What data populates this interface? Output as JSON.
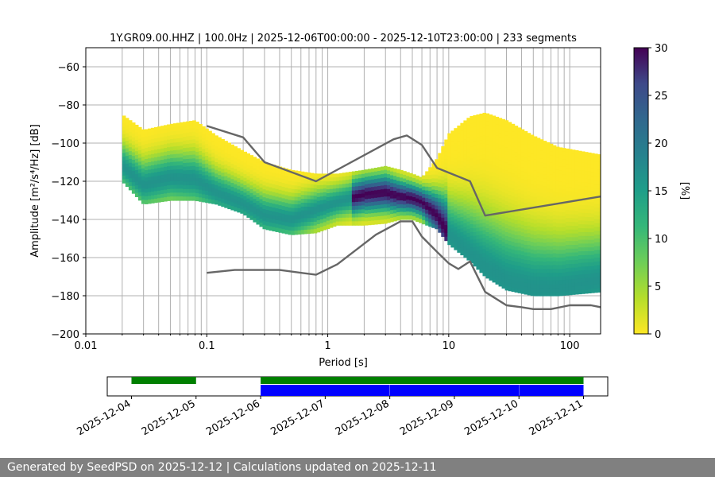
{
  "footer": {
    "text": "Generated by SeedPSD on 2025-12-12 | Calculations updated on 2025-12-11"
  },
  "colors": {
    "model_lines": "#666666",
    "grid": "#b0b0b0",
    "availability_green": "#008000",
    "availability_blue": "#0000ff",
    "footer_bg": "#808080"
  },
  "chart_data": [
    {
      "type": "heatmap",
      "title": "1Y.GR09.00.HHZ | 100.0Hz | 2025-12-06T00:00:00 - 2025-12-10T23:00:00 | 233 segments",
      "xlabel": "Period [s]",
      "ylabel": "Amplitude [m²/s⁴/Hz] [dB]",
      "x_scale": "log",
      "xlim": [
        0.01,
        180
      ],
      "ylim": [
        -200,
        -50
      ],
      "x_ticks": [
        0.01,
        0.1,
        1,
        10,
        100
      ],
      "x_tick_labels": [
        "0.01",
        "0.1",
        "1",
        "10",
        "100"
      ],
      "y_ticks": [
        -200,
        -180,
        -160,
        -140,
        -120,
        -100,
        -80,
        -60
      ],
      "y_tick_labels": [
        "−200",
        "−180",
        "−160",
        "−140",
        "−120",
        "−100",
        "−80",
        "−60"
      ],
      "grid": true,
      "colormap": "viridis_r",
      "colorbar": {
        "label": "[%]",
        "range": [
          0,
          30
        ],
        "ticks": [
          0,
          5,
          10,
          15,
          20,
          25,
          30
        ],
        "tick_labels": [
          "0",
          "5",
          "10",
          "15",
          "20",
          "25",
          "30"
        ]
      },
      "psd_band": {
        "period": [
          0.02,
          0.03,
          0.05,
          0.08,
          0.12,
          0.2,
          0.3,
          0.5,
          0.8,
          1.2,
          2,
          3,
          4,
          5,
          6,
          8,
          10,
          15,
          20,
          30,
          50,
          80,
          120,
          180
        ],
        "upper_db": [
          -85,
          -93,
          -90,
          -88,
          -96,
          -104,
          -110,
          -114,
          -116,
          -116,
          -114,
          -112,
          -114,
          -116,
          -118,
          -108,
          -95,
          -86,
          -84,
          -88,
          -96,
          -102,
          -104,
          -106
        ],
        "lower_db": [
          -120,
          -132,
          -130,
          -130,
          -132,
          -137,
          -145,
          -148,
          -147,
          -143,
          -143,
          -142,
          -140,
          -140,
          -142,
          -145,
          -153,
          -162,
          -170,
          -177,
          -180,
          -180,
          -179,
          -178
        ],
        "mode_db": [
          -112,
          -122,
          -118,
          -119,
          -126,
          -132,
          -138,
          -140,
          -135,
          -131,
          -127,
          -126,
          -128,
          -129,
          -131,
          -138,
          -148,
          -158,
          -165,
          -172,
          -176,
          -176,
          -174,
          -172
        ],
        "peak_percent": 30
      },
      "series": [
        {
          "name": "",
          "x": [
            0.1,
            0.2,
            0.3,
            0.8,
            3.5,
            4.5,
            6,
            8,
            15,
            20,
            180
          ],
          "y": [
            -91,
            -97,
            -110,
            -120,
            -98,
            -96,
            -101,
            -113,
            -120,
            -138,
            -128
          ]
        },
        {
          "name": "",
          "x": [
            0.1,
            0.17,
            0.4,
            0.8,
            1.2,
            2.5,
            4,
            5,
            6,
            8,
            10,
            12,
            15,
            20,
            30,
            40,
            50,
            70,
            100,
            150,
            180
          ],
          "y": [
            -168,
            -166.5,
            -166.5,
            -169,
            -163.5,
            -148,
            -141,
            -141,
            -149,
            -157,
            -163,
            -166,
            -162,
            -178,
            -185,
            -186,
            -187,
            -187,
            -185,
            -185,
            -186
          ]
        }
      ]
    },
    {
      "type": "bar",
      "title": "",
      "x_type": "date",
      "xlim": [
        "2025-12-03T15:00",
        "2025-12-11T09:00"
      ],
      "x_tick_labels": [
        "2025-12-04",
        "2025-12-05",
        "2025-12-06",
        "2025-12-07",
        "2025-12-08",
        "2025-12-09",
        "2025-12-10",
        "2025-12-11"
      ],
      "green_segments": [
        [
          "2025-12-04T00:00",
          "2025-12-05T00:00"
        ],
        [
          "2025-12-06T00:00",
          "2025-12-11T00:00"
        ]
      ],
      "blue_segments": [
        [
          "2025-12-06T00:00",
          "2025-12-07T23:59"
        ],
        [
          "2025-12-08T00:05",
          "2025-12-09T23:59"
        ],
        [
          "2025-12-10T00:05",
          "2025-12-11T00:00"
        ]
      ]
    }
  ]
}
